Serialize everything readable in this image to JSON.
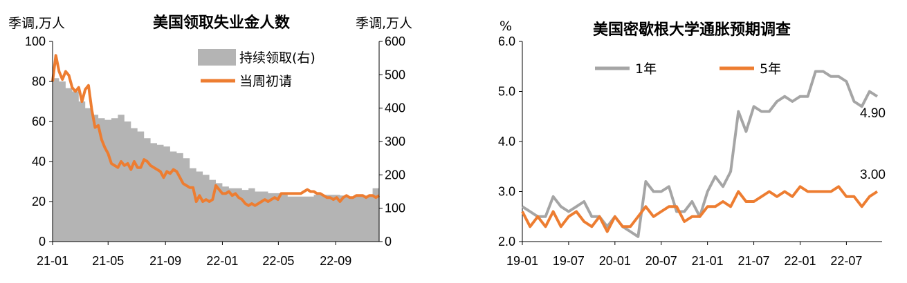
{
  "chart_data": [
    {
      "type": "area+line",
      "title": "美国领取失业金人数",
      "left_unit": "季调,万人",
      "right_unit": "季调,万人",
      "ylim_left": [
        0,
        100
      ],
      "ylim_right": [
        0,
        600
      ],
      "left_ticks": [
        "0",
        "20",
        "40",
        "60",
        "80",
        "100"
      ],
      "right_ticks": [
        "0",
        "100",
        "200",
        "300",
        "400",
        "500",
        "600"
      ],
      "x_ticks": [
        "21-01",
        "21-05",
        "21-09",
        "22-01",
        "22-05",
        "22-09"
      ],
      "x_start": "2021-01-02",
      "x_end": "2022-12-03",
      "legend": {
        "area": "持续领取(右)",
        "line": "当周初请"
      },
      "colors": {
        "area": "#b4b4b4",
        "line": "#ed7d31"
      },
      "series": [
        {
          "name": "持续领取(右)",
          "axis": "right",
          "dates": [
            "2021-01-02",
            "2021-01-16",
            "2021-01-30",
            "2021-02-13",
            "2021-02-27",
            "2021-03-13",
            "2021-03-27",
            "2021-04-10",
            "2021-04-24",
            "2021-05-08",
            "2021-05-22",
            "2021-06-05",
            "2021-06-19",
            "2021-07-03",
            "2021-07-17",
            "2021-07-31",
            "2021-08-14",
            "2021-08-28",
            "2021-09-11",
            "2021-09-25",
            "2021-10-09",
            "2021-10-23",
            "2021-11-06",
            "2021-11-20",
            "2021-12-04",
            "2021-12-18",
            "2022-01-01",
            "2022-01-15",
            "2022-01-29",
            "2022-02-12",
            "2022-02-26",
            "2022-03-12",
            "2022-03-26",
            "2022-04-09",
            "2022-04-23",
            "2022-05-07",
            "2022-05-21",
            "2022-06-04",
            "2022-06-18",
            "2022-07-02",
            "2022-07-16",
            "2022-07-30",
            "2022-08-13",
            "2022-08-27",
            "2022-09-10",
            "2022-09-24",
            "2022-10-08",
            "2022-10-22",
            "2022-11-05",
            "2022-11-19",
            "2022-12-03"
          ],
          "values": [
            490,
            480,
            460,
            450,
            420,
            400,
            380,
            370,
            365,
            370,
            380,
            360,
            340,
            330,
            310,
            295,
            290,
            285,
            270,
            265,
            250,
            220,
            210,
            200,
            185,
            175,
            165,
            160,
            160,
            155,
            160,
            150,
            150,
            145,
            145,
            140,
            135,
            135,
            135,
            135,
            140,
            140,
            140,
            140,
            138,
            135,
            135,
            138,
            138,
            160,
            165
          ]
        },
        {
          "name": "当周初请",
          "axis": "left",
          "dates": [
            "2021-01-02",
            "2021-01-09",
            "2021-01-16",
            "2021-01-23",
            "2021-01-30",
            "2021-02-06",
            "2021-02-13",
            "2021-02-20",
            "2021-02-27",
            "2021-03-06",
            "2021-03-13",
            "2021-03-20",
            "2021-03-27",
            "2021-04-03",
            "2021-04-10",
            "2021-04-17",
            "2021-04-24",
            "2021-05-01",
            "2021-05-08",
            "2021-05-15",
            "2021-05-22",
            "2021-05-29",
            "2021-06-05",
            "2021-06-12",
            "2021-06-19",
            "2021-06-26",
            "2021-07-03",
            "2021-07-10",
            "2021-07-17",
            "2021-07-24",
            "2021-07-31",
            "2021-08-07",
            "2021-08-14",
            "2021-08-21",
            "2021-08-28",
            "2021-09-04",
            "2021-09-11",
            "2021-09-18",
            "2021-09-25",
            "2021-10-02",
            "2021-10-09",
            "2021-10-16",
            "2021-10-23",
            "2021-10-30",
            "2021-11-06",
            "2021-11-13",
            "2021-11-20",
            "2021-11-27",
            "2021-12-04",
            "2021-12-11",
            "2021-12-18",
            "2021-12-25",
            "2022-01-01",
            "2022-01-08",
            "2022-01-15",
            "2022-01-22",
            "2022-01-29",
            "2022-02-05",
            "2022-02-12",
            "2022-02-19",
            "2022-02-26",
            "2022-03-05",
            "2022-03-12",
            "2022-03-19",
            "2022-03-26",
            "2022-04-02",
            "2022-04-09",
            "2022-04-16",
            "2022-04-23",
            "2022-04-30",
            "2022-05-07",
            "2022-05-14",
            "2022-05-21",
            "2022-05-28",
            "2022-06-04",
            "2022-06-11",
            "2022-06-18",
            "2022-06-25",
            "2022-07-02",
            "2022-07-09",
            "2022-07-16",
            "2022-07-23",
            "2022-07-30",
            "2022-08-06",
            "2022-08-13",
            "2022-08-20",
            "2022-08-27",
            "2022-09-03",
            "2022-09-10",
            "2022-09-17",
            "2022-09-24",
            "2022-10-01",
            "2022-10-08",
            "2022-10-15",
            "2022-10-22",
            "2022-10-29",
            "2022-11-05",
            "2022-11-12",
            "2022-11-19",
            "2022-11-26",
            "2022-12-03"
          ],
          "values": [
            80,
            93,
            85,
            81,
            85,
            83,
            77,
            75,
            77,
            70,
            76,
            78,
            66,
            57,
            58,
            51,
            47,
            44,
            39,
            38,
            37,
            40,
            38,
            39,
            36,
            40,
            37,
            37,
            41,
            40,
            38,
            37,
            36,
            35,
            32,
            35,
            34,
            36,
            35,
            32,
            29,
            28,
            27,
            27,
            20,
            23,
            20,
            21,
            20,
            21,
            28,
            26,
            24,
            24,
            25,
            23,
            24,
            22,
            21,
            19,
            18,
            19,
            18,
            19,
            20,
            21,
            20,
            21,
            22,
            21,
            24,
            24,
            24,
            24,
            24,
            24,
            24,
            25,
            26,
            25,
            25,
            24,
            24,
            23,
            22,
            22,
            21,
            22,
            20,
            22,
            23,
            22,
            22,
            23,
            23,
            23,
            22,
            23,
            23,
            22,
            23
          ]
        }
      ]
    },
    {
      "type": "line",
      "title": "美国密歇根大学通胀预期调查",
      "unit": "%",
      "ylim": [
        2.0,
        6.0
      ],
      "y_ticks": [
        "2.0",
        "3.0",
        "4.0",
        "5.0",
        "6.0"
      ],
      "x_ticks": [
        "19-01",
        "19-07",
        "20-01",
        "20-07",
        "21-01",
        "21-07",
        "22-01",
        "22-07"
      ],
      "x_start": "2019-01",
      "x_end": "2022-11",
      "legend": [
        "1年",
        "5年"
      ],
      "colors": {
        "1年": "#a5a5a5",
        "5年": "#ed7d31"
      },
      "end_labels": {
        "1年": "4.90",
        "5年": "3.00"
      },
      "series": [
        {
          "name": "1年",
          "values": [
            2.7,
            2.6,
            2.5,
            2.5,
            2.9,
            2.7,
            2.6,
            2.7,
            2.8,
            2.5,
            2.5,
            2.3,
            2.5,
            2.3,
            2.2,
            2.1,
            3.2,
            3.0,
            3.0,
            3.1,
            2.6,
            2.6,
            2.8,
            2.5,
            3.0,
            3.3,
            3.1,
            3.4,
            4.6,
            4.2,
            4.7,
            4.6,
            4.6,
            4.8,
            4.9,
            4.8,
            4.9,
            4.9,
            5.4,
            5.4,
            5.3,
            5.3,
            5.2,
            4.8,
            4.7,
            5.0,
            4.9
          ]
        },
        {
          "name": "5年",
          "values": [
            2.6,
            2.3,
            2.5,
            2.3,
            2.6,
            2.3,
            2.5,
            2.6,
            2.4,
            2.3,
            2.5,
            2.2,
            2.5,
            2.3,
            2.3,
            2.5,
            2.7,
            2.5,
            2.6,
            2.7,
            2.7,
            2.4,
            2.5,
            2.5,
            2.7,
            2.7,
            2.8,
            2.7,
            3.0,
            2.8,
            2.8,
            2.9,
            3.0,
            2.9,
            3.0,
            2.9,
            3.1,
            3.0,
            3.0,
            3.0,
            3.0,
            3.1,
            2.9,
            2.9,
            2.7,
            2.9,
            3.0
          ]
        }
      ]
    }
  ]
}
